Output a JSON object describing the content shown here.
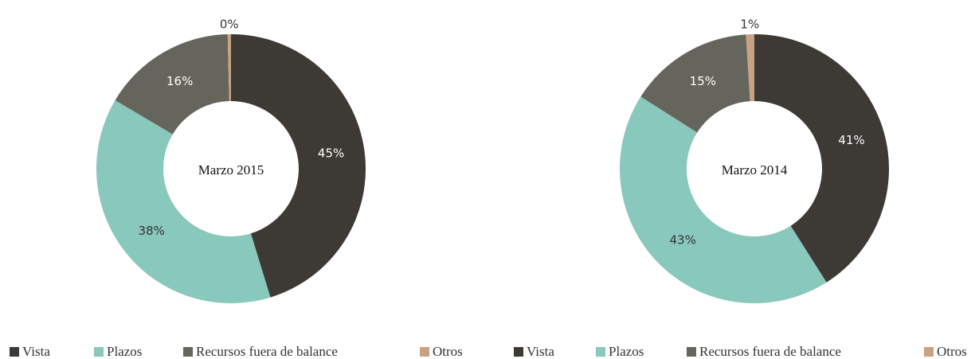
{
  "chart_data": [
    {
      "type": "donut",
      "title": "Marzo 2015",
      "categories": [
        "Vista",
        "Plazos",
        "Recursos fuera de balance",
        "Otros"
      ],
      "series": [
        {
          "values": [
            45,
            38,
            16,
            0.4
          ],
          "value_labels": [
            "45%",
            "38%",
            "16%",
            "0%"
          ]
        }
      ],
      "colors": [
        "#3d3935",
        "#89c8bc",
        "#66655b",
        "#c9a284"
      ]
    },
    {
      "type": "donut",
      "title": "Marzo 2014",
      "categories": [
        "Vista",
        "Plazos",
        "Recursos fuera de balance",
        "Otros"
      ],
      "series": [
        {
          "values": [
            41,
            43,
            15,
            1
          ],
          "value_labels": [
            "41%",
            "43%",
            "15%",
            "1%"
          ]
        }
      ],
      "colors": [
        "#3d3935",
        "#89c8bc",
        "#66655b",
        "#c9a284"
      ]
    }
  ]
}
